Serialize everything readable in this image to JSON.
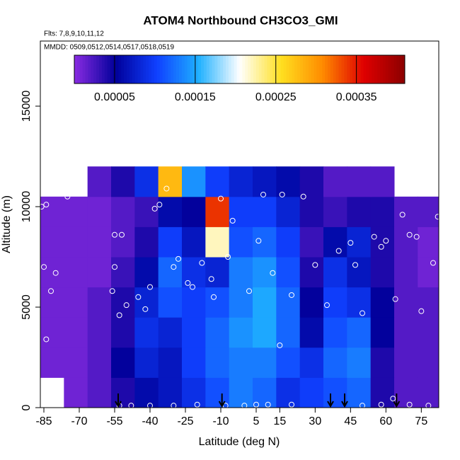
{
  "chart_data": {
    "type": "heatmap",
    "title": "ATOM4 Northbound CH3CO3_GMI",
    "subtitle": "Flts: 7,8,9,10,11,12",
    "annotation": "MMDD: 0509,0512,0514,0517,0518,0519",
    "x_label": "Latitude (deg N)",
    "y_label": "Altitude (m)",
    "xlim": [
      -86.5,
      82.4
    ],
    "ylim": [
      0,
      18240
    ],
    "xticks": [
      -85,
      -70,
      -55,
      -40,
      -25,
      -10,
      5,
      15,
      30,
      45,
      60,
      75
    ],
    "yticks": [
      0,
      5000,
      10000,
      15000
    ],
    "x_edges": [
      -86.5,
      -76.5,
      -66.5,
      -56.5,
      -46.5,
      -36.5,
      -26.5,
      -16.5,
      -6.5,
      3.5,
      13.5,
      23.5,
      33.5,
      43.5,
      53.5,
      63.5,
      73.5,
      83.5
    ],
    "y_edges": [
      0,
      1500,
      3000,
      4500,
      6000,
      7500,
      9000,
      10500,
      12000
    ],
    "z": [
      [
        null,
        1e-05,
        2e-05,
        4e-05,
        6e-05,
        7e-05,
        9e-05,
        0.00011,
        0.00013,
        0.00012,
        9e-05,
        0.0001,
        0.00011,
        0.00012,
        4e-05,
        2e-05,
        2e-05
      ],
      [
        1e-05,
        1e-05,
        2e-05,
        5e-05,
        8e-05,
        7e-05,
        0.0001,
        0.00012,
        0.00013,
        0.00013,
        0.00011,
        9e-05,
        0.00012,
        0.00013,
        4e-05,
        2e-05,
        2e-05
      ],
      [
        1e-05,
        1e-05,
        2e-05,
        4e-05,
        9e-05,
        8e-05,
        0.0001,
        0.00012,
        0.00014,
        0.00015,
        0.00012,
        6e-05,
        0.00011,
        0.00012,
        5e-05,
        2e-05,
        2e-05
      ],
      [
        1e-05,
        1e-05,
        2e-05,
        4e-05,
        8e-05,
        0.00011,
        0.0001,
        0.00011,
        0.00013,
        0.00015,
        0.00012,
        5e-05,
        0.0001,
        9e-05,
        5e-05,
        2e-05,
        2e-05
      ],
      [
        1e-05,
        1e-05,
        1e-05,
        3e-05,
        6e-05,
        0.00012,
        9e-05,
        8e-05,
        0.00013,
        0.00014,
        0.00011,
        4e-05,
        9e-05,
        7e-05,
        4e-05,
        2e-05,
        1e-05
      ],
      [
        1e-05,
        1e-05,
        1e-05,
        2e-05,
        4e-05,
        0.0001,
        7e-05,
        0.00022,
        0.00011,
        0.00012,
        0.0001,
        3e-05,
        6e-05,
        8e-05,
        4e-05,
        2e-05,
        1e-05
      ],
      [
        1e-05,
        1e-05,
        1e-05,
        2e-05,
        3e-05,
        6e-05,
        5e-05,
        0.00034,
        0.0001,
        0.0001,
        8e-05,
        4e-05,
        3e-05,
        4e-05,
        4e-05,
        2e-05,
        2e-05
      ],
      [
        null,
        null,
        2e-05,
        4e-05,
        9e-05,
        0.00028,
        0.00014,
        0.0001,
        8e-05,
        7e-05,
        6e-05,
        4e-05,
        2e-05,
        2e-05,
        2e-05,
        null,
        null
      ]
    ],
    "clim": [
      0,
      0.00041
    ],
    "colorbar_ticks": [
      5e-05,
      0.00015,
      0.00025,
      0.00035
    ],
    "colors": [
      "#8a2be2",
      "#00009a",
      "#1040ff",
      "#1eb0ff",
      "#ffffff",
      "#ffe020",
      "#ff8c00",
      "#e00000",
      "#8b0000"
    ],
    "points": {
      "x": [
        -86,
        -84,
        -85,
        -84,
        -82,
        -80,
        -79,
        -75,
        -73,
        -70,
        -68,
        -56,
        -55,
        -55,
        -52,
        -53,
        -50,
        -45,
        -42,
        -40,
        -38,
        -36,
        -33,
        -30,
        -28,
        -24,
        -22,
        -18,
        -14,
        -13,
        -10,
        -7,
        -5,
        2,
        6,
        8,
        12,
        15,
        16,
        20,
        25,
        30,
        35,
        40,
        45,
        47,
        50,
        55,
        58,
        60,
        64,
        67,
        70,
        73,
        75,
        80,
        82,
        78,
        72,
        -53,
        -48,
        -40,
        -30,
        -20,
        -8,
        0,
        5,
        10,
        20,
        50,
        58,
        63,
        70,
        78
      ],
      "y": [
        10000,
        10100,
        7000,
        3400,
        5800,
        6700,
        1300,
        10500,
        10700,
        11200,
        11350,
        5800,
        7000,
        8600,
        8600,
        4600,
        5100,
        5500,
        4900,
        6000,
        9900,
        10100,
        10900,
        7000,
        7400,
        6200,
        6000,
        7200,
        6400,
        5500,
        10400,
        7500,
        9300,
        5800,
        8300,
        10600,
        6700,
        3100,
        10600,
        5600,
        10500,
        7100,
        5100,
        7800,
        8200,
        7100,
        4700,
        8500,
        8000,
        8300,
        5400,
        9600,
        8600,
        8500,
        4800,
        7200,
        9500,
        11200,
        11300,
        100,
        100,
        100,
        100,
        150,
        100,
        100,
        150,
        150,
        150,
        100,
        150,
        450,
        150,
        100
      ]
    },
    "arrows": [
      -53.5,
      -9.5,
      36.5,
      42.5,
      64.5
    ]
  }
}
